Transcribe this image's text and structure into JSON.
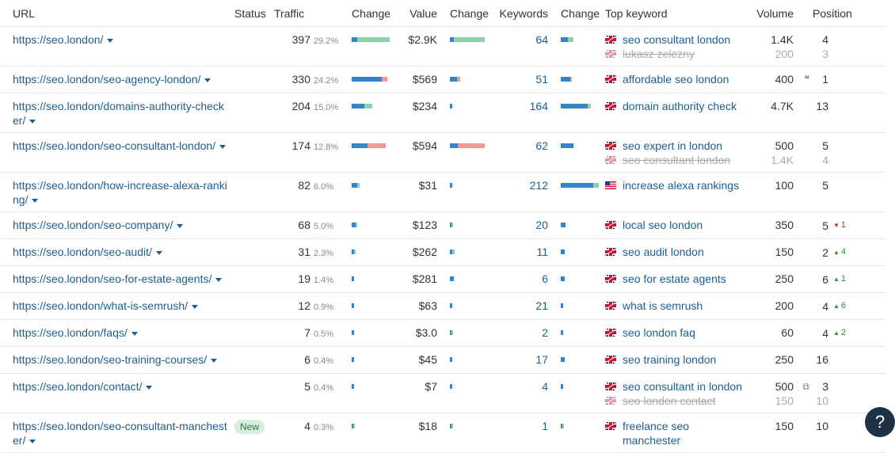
{
  "headers": {
    "url": "URL",
    "status": "Status",
    "traffic": "Traffic",
    "traffic_change": "Change",
    "value": "Value",
    "value_change": "Change",
    "keywords": "Keywords",
    "keywords_change": "Change",
    "top_keyword": "Top keyword",
    "volume": "Volume",
    "position": "Position"
  },
  "colors": {
    "link": "#1d5e91",
    "bar_blue": "#3685c9",
    "bar_green": "#8ed1a6",
    "bar_red": "#ef9896",
    "up": "#2d8a3e",
    "down": "#c62828"
  },
  "rows": [
    {
      "url": "https://seo.london/",
      "status": "",
      "traffic": "397",
      "traffic_pct": "29.2%",
      "value": "$2.9K",
      "keywords": "64",
      "keywords_list": [
        {
          "text": "seo consultant london",
          "flag": "uk",
          "volume": "1.4K",
          "position": "4",
          "muted": false
        },
        {
          "text": "lukasz zelezny",
          "flag": "uk",
          "volume": "200",
          "position": "3",
          "muted": true
        }
      ]
    },
    {
      "url": "https://seo.london/seo-agency-london/",
      "status": "",
      "traffic": "330",
      "traffic_pct": "24.2%",
      "value": "$569",
      "keywords": "51",
      "keywords_list": [
        {
          "text": "affordable seo london",
          "flag": "uk",
          "volume": "400",
          "position": "1",
          "feature": "quote-icon",
          "muted": false
        }
      ]
    },
    {
      "url": "https://seo.london/domains-authority-checker/",
      "status": "",
      "traffic": "204",
      "traffic_pct": "15.0%",
      "value": "$234",
      "keywords": "164",
      "keywords_list": [
        {
          "text": "domain authority check",
          "flag": "uk",
          "volume": "4.7K",
          "position": "13",
          "muted": false
        }
      ]
    },
    {
      "url": "https://seo.london/seo-consultant-london/",
      "status": "",
      "traffic": "174",
      "traffic_pct": "12.8%",
      "value": "$594",
      "keywords": "62",
      "keywords_list": [
        {
          "text": "seo expert in london",
          "flag": "uk",
          "volume": "500",
          "position": "5",
          "muted": false
        },
        {
          "text": "seo consultant london",
          "flag": "uk",
          "volume": "1.4K",
          "position": "4",
          "muted": true
        }
      ]
    },
    {
      "url": "https://seo.london/how-increase-alexa-ranking/",
      "status": "",
      "traffic": "82",
      "traffic_pct": "6.0%",
      "value": "$31",
      "keywords": "212",
      "keywords_list": [
        {
          "text": "increase alexa rankings",
          "flag": "us",
          "volume": "100",
          "position": "5",
          "muted": false
        }
      ]
    },
    {
      "url": "https://seo.london/seo-company/",
      "status": "",
      "traffic": "68",
      "traffic_pct": "5.0%",
      "value": "$123",
      "keywords": "20",
      "keywords_list": [
        {
          "text": "local seo london",
          "flag": "uk",
          "volume": "350",
          "position": "5",
          "delta": "1",
          "delta_dir": "down",
          "muted": false
        }
      ]
    },
    {
      "url": "https://seo.london/seo-audit/",
      "status": "",
      "traffic": "31",
      "traffic_pct": "2.3%",
      "value": "$262",
      "keywords": "11",
      "keywords_list": [
        {
          "text": "seo audit london",
          "flag": "uk",
          "volume": "150",
          "position": "2",
          "delta": "4",
          "delta_dir": "up",
          "muted": false
        }
      ]
    },
    {
      "url": "https://seo.london/seo-for-estate-agents/",
      "status": "",
      "traffic": "19",
      "traffic_pct": "1.4%",
      "value": "$281",
      "keywords": "6",
      "keywords_list": [
        {
          "text": "seo for estate agents",
          "flag": "uk",
          "volume": "250",
          "position": "6",
          "delta": "1",
          "delta_dir": "up",
          "muted": false
        }
      ]
    },
    {
      "url": "https://seo.london/what-is-semrush/",
      "status": "",
      "traffic": "12",
      "traffic_pct": "0.9%",
      "value": "$63",
      "keywords": "21",
      "keywords_list": [
        {
          "text": "what is semrush",
          "flag": "uk",
          "volume": "200",
          "position": "4",
          "delta": "6",
          "delta_dir": "up",
          "muted": false
        }
      ]
    },
    {
      "url": "https://seo.london/faqs/",
      "status": "",
      "traffic": "7",
      "traffic_pct": "0.5%",
      "value": "$3.0",
      "keywords": "2",
      "keywords_list": [
        {
          "text": "seo london faq",
          "flag": "uk",
          "volume": "60",
          "position": "4",
          "delta": "2",
          "delta_dir": "up",
          "muted": false
        }
      ]
    },
    {
      "url": "https://seo.london/seo-training-courses/",
      "status": "",
      "traffic": "6",
      "traffic_pct": "0.4%",
      "value": "$45",
      "keywords": "17",
      "keywords_list": [
        {
          "text": "seo training london",
          "flag": "uk",
          "volume": "250",
          "position": "16",
          "muted": false
        }
      ]
    },
    {
      "url": "https://seo.london/contact/",
      "status": "",
      "traffic": "5",
      "traffic_pct": "0.4%",
      "value": "$7",
      "keywords": "4",
      "keywords_list": [
        {
          "text": "seo consultant in london",
          "flag": "uk",
          "volume": "500",
          "position": "3",
          "feature": "link-icon",
          "muted": false
        },
        {
          "text": "seo london contact",
          "flag": "uk",
          "volume": "150",
          "position": "10",
          "muted": true
        }
      ]
    },
    {
      "url": "https://seo.london/seo-consultant-manchester/",
      "status": "New",
      "traffic": "4",
      "traffic_pct": "0.3%",
      "value": "$18",
      "keywords": "1",
      "keywords_list": [
        {
          "text": "freelance seo manchester",
          "flag": "uk",
          "volume": "150",
          "position": "10",
          "muted": false
        }
      ]
    }
  ],
  "change_bars": [
    {
      "traffic": {
        "blue": 0.15,
        "green": 0.85,
        "red": 0
      },
      "value": {
        "blue": 0.1,
        "green": 0.9,
        "red": 0
      },
      "keywords": {
        "blue": 0.55,
        "green": 0.45,
        "red": 0
      }
    },
    {
      "traffic": {
        "blue": 0.85,
        "green": 0,
        "red": 0.15
      },
      "value": {
        "blue": 0.7,
        "green": 0,
        "red": 0.3
      },
      "keywords": {
        "blue": 0.85,
        "green": 0,
        "red": 0.15
      }
    },
    {
      "traffic": {
        "blue": 0.6,
        "green": 0.4,
        "red": 0
      },
      "value": {
        "blue": 1,
        "green": 0,
        "red": 0
      },
      "keywords": {
        "blue": 0.9,
        "green": 0.1,
        "red": 0
      }
    },
    {
      "traffic": {
        "blue": 0.47,
        "green": 0,
        "red": 0.53
      },
      "value": {
        "blue": 0.22,
        "green": 0,
        "red": 0.78
      },
      "keywords": {
        "blue": 1,
        "green": 0,
        "red": 0
      }
    },
    {
      "traffic": {
        "blue": 0.7,
        "green": 0.3,
        "red": 0
      },
      "value": {
        "blue": 1,
        "green": 0,
        "red": 0
      },
      "keywords": {
        "blue": 0.85,
        "green": 0.15,
        "red": 0
      }
    },
    {
      "traffic": {
        "blue": 0.75,
        "green": 0.25,
        "red": 0
      },
      "value": {
        "blue": 0.5,
        "green": 0.5,
        "red": 0
      },
      "keywords": {
        "blue": 1,
        "green": 0,
        "red": 0
      }
    },
    {
      "traffic": {
        "blue": 0.75,
        "green": 0.25,
        "red": 0
      },
      "value": {
        "blue": 0.5,
        "green": 0.5,
        "red": 0
      },
      "keywords": {
        "blue": 1,
        "green": 0,
        "red": 0
      }
    },
    {
      "traffic": {
        "blue": 1,
        "green": 0,
        "red": 0
      },
      "value": {
        "blue": 1,
        "green": 0,
        "red": 0
      },
      "keywords": {
        "blue": 1,
        "green": 0,
        "red": 0
      }
    },
    {
      "traffic": {
        "blue": 1,
        "green": 0,
        "red": 0
      },
      "value": {
        "blue": 1,
        "green": 0,
        "red": 0
      },
      "keywords": {
        "blue": 1,
        "green": 0,
        "red": 0
      }
    },
    {
      "traffic": {
        "blue": 1,
        "green": 0,
        "red": 0
      },
      "value": {
        "blue": 0.5,
        "green": 0.5,
        "red": 0
      },
      "keywords": {
        "blue": 1,
        "green": 0,
        "red": 0
      }
    },
    {
      "traffic": {
        "blue": 1,
        "green": 0,
        "red": 0
      },
      "value": {
        "blue": 1,
        "green": 0,
        "red": 0
      },
      "keywords": {
        "blue": 1,
        "green": 0,
        "red": 0
      }
    },
    {
      "traffic": {
        "blue": 1,
        "green": 0,
        "red": 0
      },
      "value": {
        "blue": 1,
        "green": 0,
        "red": 0
      },
      "keywords": {
        "blue": 1,
        "green": 0,
        "red": 0
      }
    },
    {
      "traffic": {
        "blue": 0.5,
        "green": 0.5,
        "red": 0
      },
      "value": {
        "blue": 0.5,
        "green": 0.5,
        "red": 0
      },
      "keywords": {
        "blue": 0.5,
        "green": 0.5,
        "red": 0
      }
    }
  ],
  "change_bar_scale": [
    {
      "traffic": 1.0,
      "value": 1.0,
      "keywords": 0.33
    },
    {
      "traffic": 0.94,
      "value": 0.27,
      "keywords": 0.3
    },
    {
      "traffic": 0.54,
      "value": 0.07,
      "keywords": 0.8
    },
    {
      "traffic": 0.9,
      "value": 1.0,
      "keywords": 0.33
    },
    {
      "traffic": 0.2,
      "value": 0.04,
      "keywords": 1.0
    },
    {
      "traffic": 0.14,
      "value": 0.06,
      "keywords": 0.12
    },
    {
      "traffic": 0.09,
      "value": 0.1,
      "keywords": 0.1
    },
    {
      "traffic": 0.06,
      "value": 0.1,
      "keywords": 0.1
    },
    {
      "traffic": 0.04,
      "value": 0.04,
      "keywords": 0.06
    },
    {
      "traffic": 0.03,
      "value": 0.02,
      "keywords": 0.06
    },
    {
      "traffic": 0.03,
      "value": 0.04,
      "keywords": 0.1
    },
    {
      "traffic": 0.03,
      "value": 0.04,
      "keywords": 0.06
    },
    {
      "traffic": 0.03,
      "value": 0.03,
      "keywords": 0.03
    }
  ],
  "help_button": "?"
}
